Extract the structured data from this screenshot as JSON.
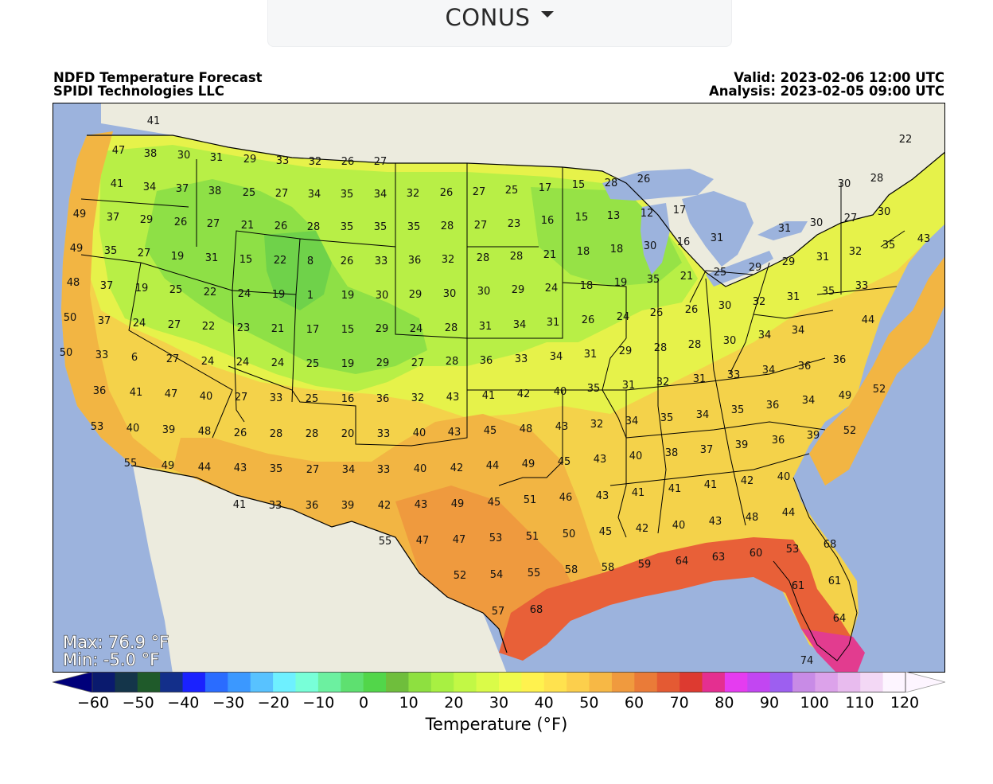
{
  "selector": {
    "value": "CONUS"
  },
  "header": {
    "title": "NDFD Temperature Forecast",
    "org": "SPIDI Technologies LLC",
    "valid": "Valid: 2023-02-06 12:00 UTC",
    "analysis": "Analysis: 2023-02-05 09:00 UTC"
  },
  "stats": {
    "max": "Max: 76.9 °F",
    "min": "Min: -5.0 °F"
  },
  "colorbar": {
    "label": "Temperature (°F)",
    "ticks": [
      "−60",
      "−50",
      "−40",
      "−30",
      "−20",
      "−10",
      "0",
      "10",
      "20",
      "30",
      "40",
      "50",
      "60",
      "70",
      "80",
      "90",
      "100",
      "110",
      "120"
    ],
    "colors": [
      "#0a1a6e",
      "#14354a",
      "#1f5a2a",
      "#132f8a",
      "#1a22ff",
      "#2a6cff",
      "#3b98ff",
      "#58c2ff",
      "#6ef0ff",
      "#78ffd8",
      "#6cf0a0",
      "#5ee070",
      "#52d64a",
      "#6fbe3c",
      "#8ee040",
      "#a8f042",
      "#c2f845",
      "#dafb48",
      "#f0fb4c",
      "#fff24e",
      "#ffe24e",
      "#fccf4c",
      "#f7b845",
      "#f09a3e",
      "#ea7b38",
      "#e45a33",
      "#dd3a30",
      "#e42f90",
      "#e53cf0",
      "#c246f2",
      "#9d5ff0",
      "#c88be6",
      "#dca2ea",
      "#e8bbee",
      "#f3d8f5",
      "#fdf5ff"
    ],
    "under_color": "#00007a",
    "over_color": "#fdf5ff"
  },
  "map": {
    "background_ocean": "#9cb3dd",
    "land_outside": "#ecebde",
    "labels": [
      [
        "41",
        192,
        150
      ],
      [
        "47",
        148,
        187
      ],
      [
        "38",
        188,
        191
      ],
      [
        "30",
        230,
        193
      ],
      [
        "31",
        271,
        196
      ],
      [
        "29",
        313,
        198
      ],
      [
        "33",
        354,
        200
      ],
      [
        "32",
        395,
        201
      ],
      [
        "26",
        436,
        201
      ],
      [
        "27",
        477,
        201
      ],
      [
        "41",
        146,
        229
      ],
      [
        "34",
        187,
        233
      ],
      [
        "37",
        228,
        235
      ],
      [
        "38",
        269,
        238
      ],
      [
        "25",
        312,
        240
      ],
      [
        "27",
        353,
        241
      ],
      [
        "34",
        394,
        242
      ],
      [
        "35",
        435,
        242
      ],
      [
        "34",
        477,
        242
      ],
      [
        "32",
        518,
        241
      ],
      [
        "26",
        560,
        240
      ],
      [
        "27",
        601,
        239
      ],
      [
        "25",
        642,
        237
      ],
      [
        "17",
        684,
        234
      ],
      [
        "15",
        726,
        230
      ],
      [
        "28",
        767,
        228
      ],
      [
        "26",
        808,
        223
      ],
      [
        "22",
        1137,
        173
      ],
      [
        "28",
        1101,
        222
      ],
      [
        "30",
        1060,
        229
      ],
      [
        "49",
        99,
        267
      ],
      [
        "37",
        141,
        271
      ],
      [
        "29",
        183,
        274
      ],
      [
        "26",
        226,
        277
      ],
      [
        "27",
        267,
        279
      ],
      [
        "21",
        310,
        281
      ],
      [
        "26",
        352,
        282
      ],
      [
        "28",
        393,
        283
      ],
      [
        "35",
        435,
        283
      ],
      [
        "35",
        477,
        283
      ],
      [
        "35",
        519,
        283
      ],
      [
        "28",
        561,
        282
      ],
      [
        "27",
        603,
        281
      ],
      [
        "23",
        645,
        279
      ],
      [
        "16",
        687,
        275
      ],
      [
        "15",
        730,
        271
      ],
      [
        "13",
        770,
        269
      ],
      [
        "12",
        812,
        266
      ],
      [
        "17",
        853,
        262
      ],
      [
        "30",
        1025,
        278
      ],
      [
        "27",
        1068,
        272
      ],
      [
        "30",
        1110,
        264
      ],
      [
        "43",
        1160,
        298
      ],
      [
        "31",
        985,
        285
      ],
      [
        "49",
        95,
        310
      ],
      [
        "35",
        138,
        313
      ],
      [
        "27",
        180,
        316
      ],
      [
        "19",
        222,
        320
      ],
      [
        "31",
        265,
        322
      ],
      [
        "15",
        308,
        324
      ],
      [
        "22",
        351,
        325
      ],
      [
        "8",
        389,
        326
      ],
      [
        "26",
        435,
        326
      ],
      [
        "33",
        478,
        326
      ],
      [
        "36",
        520,
        325
      ],
      [
        "32",
        562,
        324
      ],
      [
        "28",
        606,
        322
      ],
      [
        "28",
        648,
        320
      ],
      [
        "21",
        690,
        318
      ],
      [
        "18",
        732,
        314
      ],
      [
        "18",
        774,
        311
      ],
      [
        "30",
        816,
        307
      ],
      [
        "16",
        858,
        302
      ],
      [
        "31",
        900,
        297
      ],
      [
        "32",
        1074,
        314
      ],
      [
        "31",
        1033,
        321
      ],
      [
        "29",
        990,
        327
      ],
      [
        "29",
        948,
        334
      ],
      [
        "35",
        1116,
        306
      ],
      [
        "48",
        91,
        353
      ],
      [
        "37",
        133,
        357
      ],
      [
        "19",
        177,
        360
      ],
      [
        "25",
        220,
        362
      ],
      [
        "22",
        263,
        365
      ],
      [
        "24",
        306,
        367
      ],
      [
        "19",
        349,
        368
      ],
      [
        "1",
        389,
        369
      ],
      [
        "19",
        436,
        369
      ],
      [
        "30",
        479,
        369
      ],
      [
        "29",
        521,
        368
      ],
      [
        "30",
        564,
        367
      ],
      [
        "30",
        607,
        364
      ],
      [
        "29",
        650,
        362
      ],
      [
        "24",
        692,
        360
      ],
      [
        "18",
        736,
        357
      ],
      [
        "19",
        779,
        353
      ],
      [
        "35",
        820,
        349
      ],
      [
        "21",
        862,
        345
      ],
      [
        "25",
        904,
        340
      ],
      [
        "33",
        1082,
        357
      ],
      [
        "35",
        1040,
        364
      ],
      [
        "31",
        996,
        371
      ],
      [
        "32",
        953,
        377
      ],
      [
        "30",
        910,
        382
      ],
      [
        "26",
        868,
        387
      ],
      [
        "26",
        824,
        391
      ],
      [
        "50",
        87,
        397
      ],
      [
        "37",
        130,
        401
      ],
      [
        "24",
        174,
        404
      ],
      [
        "27",
        218,
        406
      ],
      [
        "22",
        261,
        408
      ],
      [
        "23",
        305,
        410
      ],
      [
        "21",
        348,
        411
      ],
      [
        "17",
        392,
        412
      ],
      [
        "15",
        436,
        412
      ],
      [
        "29",
        479,
        411
      ],
      [
        "24",
        522,
        411
      ],
      [
        "28",
        566,
        410
      ],
      [
        "31",
        609,
        408
      ],
      [
        "34",
        652,
        406
      ],
      [
        "31",
        694,
        403
      ],
      [
        "26",
        738,
        400
      ],
      [
        "24",
        782,
        396
      ],
      [
        "44",
        1090,
        400
      ],
      [
        "34",
        1002,
        413
      ],
      [
        "34",
        960,
        419
      ],
      [
        "30",
        916,
        426
      ],
      [
        "28",
        872,
        431
      ],
      [
        "28",
        829,
        435
      ],
      [
        "29",
        785,
        439
      ],
      [
        "31",
        741,
        443
      ],
      [
        "50",
        82,
        441
      ],
      [
        "33",
        127,
        444
      ],
      [
        "6",
        168,
        447
      ],
      [
        "27",
        216,
        449
      ],
      [
        "24",
        260,
        452
      ],
      [
        "24",
        304,
        453
      ],
      [
        "24",
        348,
        454
      ],
      [
        "25",
        392,
        455
      ],
      [
        "19",
        436,
        455
      ],
      [
        "29",
        480,
        454
      ],
      [
        "27",
        524,
        454
      ],
      [
        "28",
        567,
        452
      ],
      [
        "36",
        610,
        451
      ],
      [
        "33",
        654,
        449
      ],
      [
        "34",
        698,
        446
      ],
      [
        "36",
        1054,
        450
      ],
      [
        "36",
        1010,
        458
      ],
      [
        "34",
        965,
        463
      ],
      [
        "33",
        921,
        469
      ],
      [
        "31",
        878,
        474
      ],
      [
        "32",
        832,
        478
      ],
      [
        "31",
        789,
        482
      ],
      [
        "35",
        745,
        486
      ],
      [
        "40",
        703,
        490
      ],
      [
        "36",
        124,
        489
      ],
      [
        "41",
        170,
        491
      ],
      [
        "47",
        214,
        493
      ],
      [
        "40",
        258,
        496
      ],
      [
        "27",
        302,
        497
      ],
      [
        "33",
        346,
        498
      ],
      [
        "25",
        391,
        499
      ],
      [
        "16",
        436,
        499
      ],
      [
        "36",
        480,
        499
      ],
      [
        "32",
        524,
        498
      ],
      [
        "43",
        568,
        497
      ],
      [
        "41",
        613,
        495
      ],
      [
        "42",
        657,
        493
      ],
      [
        "52",
        1104,
        487
      ],
      [
        "49",
        1061,
        495
      ],
      [
        "34",
        1015,
        501
      ],
      [
        "36",
        970,
        507
      ],
      [
        "35",
        926,
        513
      ],
      [
        "34",
        882,
        519
      ],
      [
        "35",
        837,
        523
      ],
      [
        "34",
        793,
        527
      ],
      [
        "32",
        749,
        531
      ],
      [
        "43",
        705,
        534
      ],
      [
        "53",
        121,
        534
      ],
      [
        "40",
        166,
        536
      ],
      [
        "39",
        211,
        538
      ],
      [
        "48",
        256,
        540
      ],
      [
        "26",
        301,
        542
      ],
      [
        "28",
        346,
        543
      ],
      [
        "28",
        391,
        543
      ],
      [
        "20",
        436,
        543
      ],
      [
        "33",
        481,
        543
      ],
      [
        "40",
        526,
        542
      ],
      [
        "43",
        570,
        541
      ],
      [
        "45",
        615,
        539
      ],
      [
        "48",
        660,
        537
      ],
      [
        "52",
        1067,
        539
      ],
      [
        "39",
        1021,
        545
      ],
      [
        "36",
        977,
        551
      ],
      [
        "39",
        931,
        557
      ],
      [
        "37",
        887,
        563
      ],
      [
        "38",
        843,
        567
      ],
      [
        "40",
        798,
        571
      ],
      [
        "43",
        753,
        575
      ],
      [
        "45",
        708,
        578
      ],
      [
        "55",
        163,
        580
      ],
      [
        "49",
        210,
        583
      ],
      [
        "44",
        256,
        585
      ],
      [
        "43",
        301,
        586
      ],
      [
        "35",
        346,
        587
      ],
      [
        "27",
        392,
        588
      ],
      [
        "34",
        437,
        588
      ],
      [
        "33",
        481,
        588
      ],
      [
        "40",
        527,
        587
      ],
      [
        "42",
        573,
        586
      ],
      [
        "44",
        618,
        583
      ],
      [
        "49",
        663,
        581
      ],
      [
        "40",
        984,
        597
      ],
      [
        "42",
        938,
        602
      ],
      [
        "41",
        892,
        607
      ],
      [
        "41",
        847,
        612
      ],
      [
        "41",
        801,
        617
      ],
      [
        "43",
        756,
        621
      ],
      [
        "46",
        710,
        623
      ],
      [
        "41",
        300,
        632
      ],
      [
        "33",
        345,
        633
      ],
      [
        "36",
        391,
        633
      ],
      [
        "39",
        436,
        633
      ],
      [
        "42",
        482,
        633
      ],
      [
        "43",
        528,
        632
      ],
      [
        "49",
        574,
        631
      ],
      [
        "45",
        620,
        629
      ],
      [
        "51",
        665,
        626
      ],
      [
        "44",
        990,
        642
      ],
      [
        "48",
        944,
        648
      ],
      [
        "43",
        898,
        653
      ],
      [
        "40",
        852,
        658
      ],
      [
        "42",
        806,
        662
      ],
      [
        "45",
        760,
        666
      ],
      [
        "50",
        714,
        669
      ],
      [
        "55",
        483,
        678
      ],
      [
        "47",
        530,
        677
      ],
      [
        "47",
        576,
        676
      ],
      [
        "53",
        622,
        674
      ],
      [
        "51",
        668,
        672
      ],
      [
        "68",
        1042,
        682
      ],
      [
        "53",
        995,
        688
      ],
      [
        "60",
        949,
        693
      ],
      [
        "63",
        902,
        698
      ],
      [
        "64",
        856,
        703
      ],
      [
        "59",
        809,
        707
      ],
      [
        "58",
        763,
        711
      ],
      [
        "58",
        717,
        714
      ],
      [
        "52",
        577,
        721
      ],
      [
        "54",
        623,
        720
      ],
      [
        "55",
        670,
        718
      ],
      [
        "61",
        1048,
        728
      ],
      [
        "61",
        1002,
        734
      ],
      [
        "57",
        625,
        766
      ],
      [
        "68",
        673,
        764
      ],
      [
        "64",
        1054,
        775
      ],
      [
        "74",
        1013,
        828
      ]
    ]
  }
}
